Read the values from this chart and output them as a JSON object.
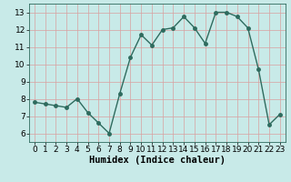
{
  "x": [
    0,
    1,
    2,
    3,
    4,
    5,
    6,
    7,
    8,
    9,
    10,
    11,
    12,
    13,
    14,
    15,
    16,
    17,
    18,
    19,
    20,
    21,
    22,
    23
  ],
  "y": [
    7.8,
    7.7,
    7.6,
    7.5,
    8.0,
    7.2,
    6.6,
    6.0,
    8.3,
    10.4,
    11.7,
    11.1,
    12.0,
    12.1,
    12.75,
    12.1,
    11.2,
    13.0,
    13.0,
    12.75,
    12.1,
    9.7,
    6.5,
    7.1
  ],
  "line_color": "#2e6b5e",
  "marker_color": "#2e6b5e",
  "bg_color": "#c8eae8",
  "grid_color": "#d9a0a0",
  "xlabel": "Humidex (Indice chaleur)",
  "ylim": [
    5.5,
    13.5
  ],
  "xlim": [
    -0.5,
    23.5
  ],
  "yticks": [
    6,
    7,
    8,
    9,
    10,
    11,
    12,
    13
  ],
  "xticks": [
    0,
    1,
    2,
    3,
    4,
    5,
    6,
    7,
    8,
    9,
    10,
    11,
    12,
    13,
    14,
    15,
    16,
    17,
    18,
    19,
    20,
    21,
    22,
    23
  ],
  "tick_fontsize": 6.5,
  "xlabel_fontsize": 7.5,
  "line_width": 1.0,
  "marker_size": 2.5
}
